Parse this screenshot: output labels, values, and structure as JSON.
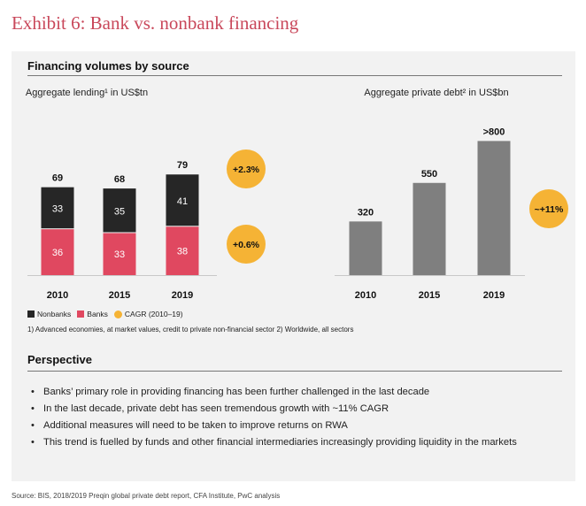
{
  "exhibit_title": "Exhibit 6: Bank vs. nonbank financing",
  "section1_title": "Financing volumes by source",
  "section2_title": "Perspective",
  "legend": {
    "nonbanks": "Nonbanks",
    "banks": "Banks",
    "cagr": "CAGR (2010–19)"
  },
  "footnote": "1) Advanced economies, at market values, credit to private non-financial sector  2) Worldwide, all sectors",
  "bullets": [
    "Banks’ primary role in providing financing has been further challenged in the last decade",
    "In the last decade, private debt has seen tremendous growth with ~11% CAGR",
    "Additional measures will need to be taken to improve returns on RWA",
    "This trend is fuelled by funds and other financial intermediaries increasingly providing liquidity in the markets"
  ],
  "source": "Source: BIS, 2018/2019 Preqin global private debt report, CFA Institute, PwC analysis",
  "colors": {
    "title": "#c9485b",
    "nonbanks": "#262626",
    "banks": "#e04860",
    "private_debt": "#7f7f7f",
    "cagr_circle": "#f5b335",
    "panel": "#f2f2f2"
  },
  "chart_data": [
    {
      "type": "bar",
      "stacked": true,
      "title": "Aggregate lending¹ in US$tn",
      "categories": [
        "2010",
        "2015",
        "2019"
      ],
      "series": [
        {
          "name": "Banks",
          "values": [
            36,
            33,
            38
          ]
        },
        {
          "name": "Nonbanks",
          "values": [
            33,
            35,
            41
          ]
        }
      ],
      "totals": [
        "69",
        "68",
        "79"
      ],
      "cagr_labels": [
        "+2.3%",
        "+0.6%"
      ]
    },
    {
      "type": "bar",
      "title": "Aggregate private debt² in US$bn",
      "categories": [
        "2010",
        "2015",
        "2019"
      ],
      "values": [
        320,
        550,
        800
      ],
      "value_labels": [
        "320",
        "550",
        ">800"
      ],
      "cagr_labels": [
        "~+11%"
      ]
    }
  ]
}
